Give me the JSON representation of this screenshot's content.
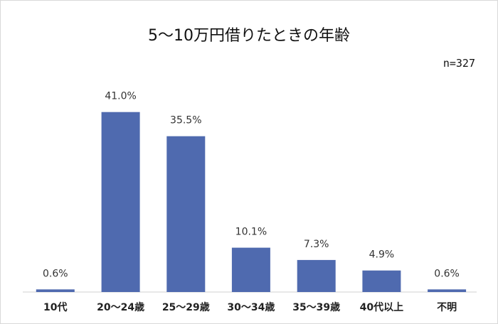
{
  "chart_data": {
    "type": "bar",
    "title": "5～10万円借りたときの年齢",
    "note": "n=327",
    "categories": [
      "10代",
      "20～24歳",
      "25～29歳",
      "30～34歳",
      "35～39歳",
      "40代以上",
      "不明"
    ],
    "values": [
      0.6,
      41.0,
      35.5,
      10.1,
      7.3,
      4.9,
      0.6
    ],
    "value_labels": [
      "0.6%",
      "41.0%",
      "35.5%",
      "10.1%",
      "7.3%",
      "4.9%",
      "0.6%"
    ],
    "ylim": [
      0,
      45
    ],
    "bar_color": "#4f6aaf",
    "grid": false,
    "legend": "none"
  }
}
